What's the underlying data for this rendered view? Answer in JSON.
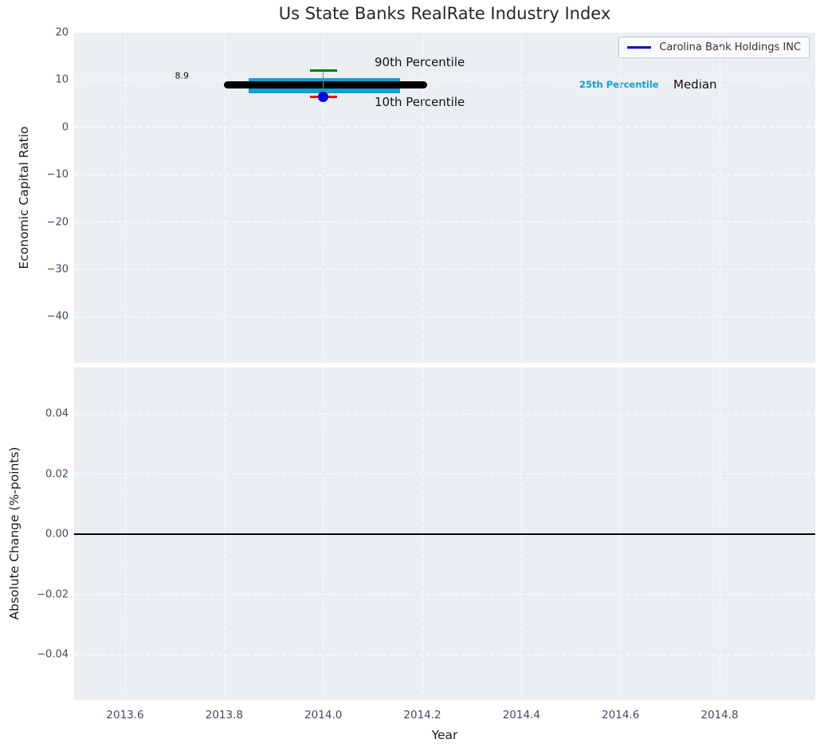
{
  "chart_data": {
    "type": "percentile_band_timeseries",
    "title": "Us State Banks RealRate Industry Index",
    "xlabel": "Year",
    "legend_position": "upper right",
    "grid": true,
    "x_axis": {
      "tick_labels": [
        "2013.6",
        "2013.8",
        "2014.0",
        "2014.2",
        "2014.4",
        "2014.6",
        "2014.8"
      ],
      "tick_values": [
        2013.6,
        2013.8,
        2014.0,
        2014.2,
        2014.4,
        2014.6,
        2014.8
      ],
      "range": [
        2013.497,
        2014.993
      ]
    },
    "series": [
      {
        "name": "Carolina Bank Holdings INC",
        "color": "#0000e0",
        "points": [
          {
            "x": 2014.0,
            "y": 6.5
          }
        ]
      }
    ],
    "top_panel": {
      "ylabel": "Economic Capital Ratio",
      "tick_labels": [
        "20",
        "10",
        "0",
        "−10",
        "−20",
        "−30",
        "−40"
      ],
      "tick_values": [
        20,
        10,
        0,
        -10,
        -20,
        -30,
        -40
      ],
      "range": [
        -49.7,
        20
      ],
      "median_line": {
        "value": 8.9,
        "x_start": 2013.8,
        "x_end": 2014.21,
        "color": "#000000"
      },
      "iqr_band": {
        "low": 7.2,
        "high": 10.4,
        "x_start": 2013.85,
        "x_end": 2014.155,
        "color": "#119fd4"
      },
      "whisker": {
        "x": 2014.0,
        "p90": 12.0,
        "p10": 6.5,
        "p90_color": "#008000",
        "p10_color": "#ff0000",
        "line_color": "#888888"
      },
      "company_point": {
        "x": 2014.0,
        "value": 6.5,
        "color": "#0404f0"
      },
      "annotations": {
        "median_value": "8.9",
        "p90": "90th Percentile",
        "p10": "10th Percentile",
        "p25": "25th Percentile",
        "median": "Median"
      },
      "p25_text_color": "#149fd0"
    },
    "bottom_panel": {
      "ylabel": "Absolute Change (%-points)",
      "tick_labels": [
        "0.04",
        "0.02",
        "0.00",
        "−0.02",
        "−0.04"
      ],
      "tick_values": [
        0.04,
        0.02,
        0.0,
        -0.02,
        -0.04
      ],
      "range": [
        -0.0551,
        0.0554
      ],
      "zero_line": {
        "value": 0.0,
        "color": "#000000"
      }
    },
    "colors": {
      "plot_bg": "#eceff1",
      "grid": "#ffffff",
      "tick_label": "#3e4d61"
    }
  }
}
